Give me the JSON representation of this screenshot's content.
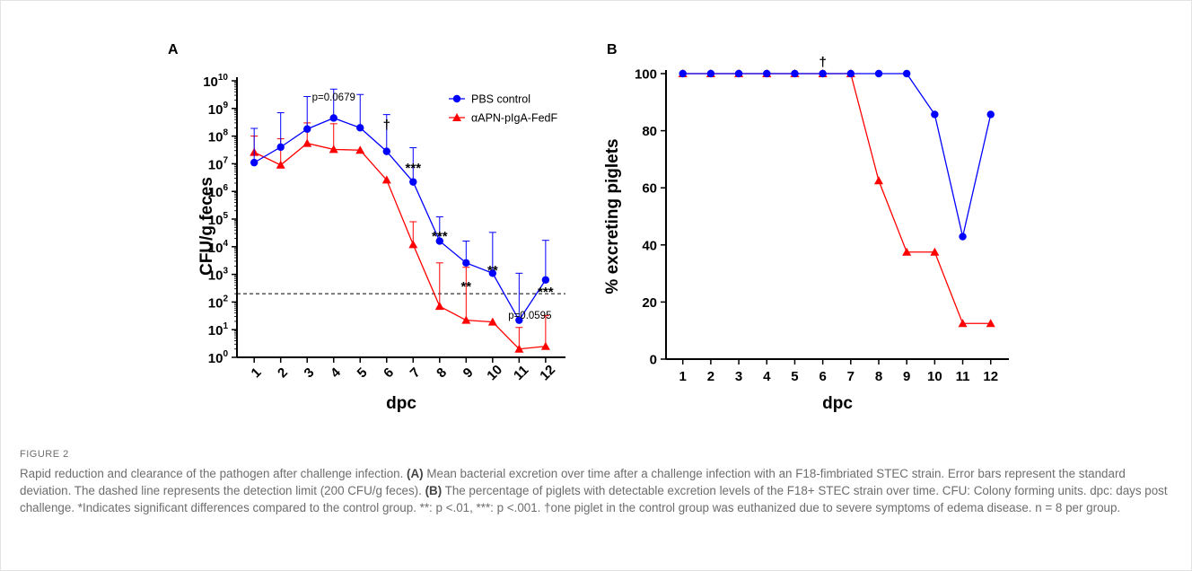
{
  "figure": {
    "label": "FIGURE 2",
    "caption_parts": [
      {
        "t": "Rapid reduction and clearance of the pathogen after challenge infection. ",
        "b": false
      },
      {
        "t": "(A)",
        "b": true
      },
      {
        "t": " Mean bacterial excretion over time after a challenge infection with an F18-fimbriated STEC strain. Error bars represent the standard deviation. The dashed line represents the detection limit (200 CFU/g feces). ",
        "b": false
      },
      {
        "t": "(B)",
        "b": true
      },
      {
        "t": " The percentage of piglets with detectable excretion levels of the F18+ STEC strain over time. CFU: Colony forming units. dpc: days post challenge. *Indicates significant differences compared to the control group. **: p <.01, ***: p <.001. †one piglet in the control group was euthanized due to severe symptoms of edema disease. n = 8 per group.",
        "b": false
      }
    ]
  },
  "colors": {
    "pbs": "#0000ff",
    "apn": "#ff0000"
  },
  "chart_data": [
    {
      "panel": "A",
      "type": "line",
      "xlabel": "dpc",
      "ylabel": "CFU/g feces",
      "yscale": "log",
      "ylim": [
        1,
        10000000000
      ],
      "ytick_base": "10",
      "ytick_exponents": [
        "0",
        "1",
        "2",
        "3",
        "4",
        "5",
        "6",
        "7",
        "8",
        "9",
        "10"
      ],
      "x": [
        1,
        2,
        3,
        4,
        5,
        6,
        7,
        8,
        9,
        10,
        11,
        12
      ],
      "x_tick_labels": [
        "1",
        "2",
        "3",
        "4",
        "5",
        "6",
        "7",
        "8",
        "9",
        "10",
        "11",
        "12"
      ],
      "detection_limit": 200,
      "series": [
        {
          "name": "PBS control",
          "color": "#0000ff",
          "marker": "circle",
          "values": [
            11000000,
            40000000,
            180000000,
            450000000,
            200000000,
            28000000,
            2200000,
            16000,
            2600,
            1100,
            22,
            630
          ],
          "error_upper": [
            190000000,
            700000000,
            2700000000,
            5000000000,
            3200000000,
            600000000,
            38000000,
            120000,
            16000,
            33000,
            1100,
            17000
          ]
        },
        {
          "name": "αAPN-pIgA-FedF",
          "color": "#ff0000",
          "marker": "triangle",
          "values": [
            26000000,
            9000000,
            55000000,
            33000000,
            31000000,
            2600000,
            12000,
            70,
            22,
            19,
            2,
            2.5
          ],
          "error_upper": [
            100000000,
            80000000,
            300000000,
            280000000,
            0,
            0,
            80000,
            2600,
            1800,
            0,
            12,
            32
          ]
        }
      ],
      "annotations": [
        {
          "x": 4,
          "text": "p=0.0679"
        },
        {
          "x": 6,
          "text": "†"
        },
        {
          "x": 7,
          "text": "***"
        },
        {
          "x": 8,
          "text": "***"
        },
        {
          "x": 9,
          "text": "**"
        },
        {
          "x": 10,
          "text": "**"
        },
        {
          "x": 11,
          "text": "p=0.0595"
        },
        {
          "x": 12,
          "text": "***"
        }
      ],
      "legend": "top-right"
    },
    {
      "panel": "B",
      "type": "line",
      "xlabel": "dpc",
      "ylabel": "% excreting piglets",
      "ylim": [
        0,
        100
      ],
      "yticks": [
        0,
        20,
        40,
        60,
        80,
        100
      ],
      "x": [
        1,
        2,
        3,
        4,
        5,
        6,
        7,
        8,
        9,
        10,
        11,
        12
      ],
      "x_tick_labels": [
        "1",
        "2",
        "3",
        "4",
        "5",
        "6",
        "7",
        "8",
        "9",
        "10",
        "11",
        "12"
      ],
      "series": [
        {
          "name": "PBS control",
          "color": "#0000ff",
          "marker": "circle",
          "values": [
            100,
            100,
            100,
            100,
            100,
            100,
            100,
            100,
            100,
            85.7,
            42.9,
            85.7
          ]
        },
        {
          "name": "αAPN-pIgA-FedF",
          "color": "#ff0000",
          "marker": "triangle",
          "values": [
            100,
            100,
            100,
            100,
            100,
            100,
            100,
            62.5,
            37.5,
            37.5,
            12.5,
            12.5
          ]
        }
      ],
      "annotations": [
        {
          "x": 6,
          "text": "†"
        }
      ]
    }
  ]
}
